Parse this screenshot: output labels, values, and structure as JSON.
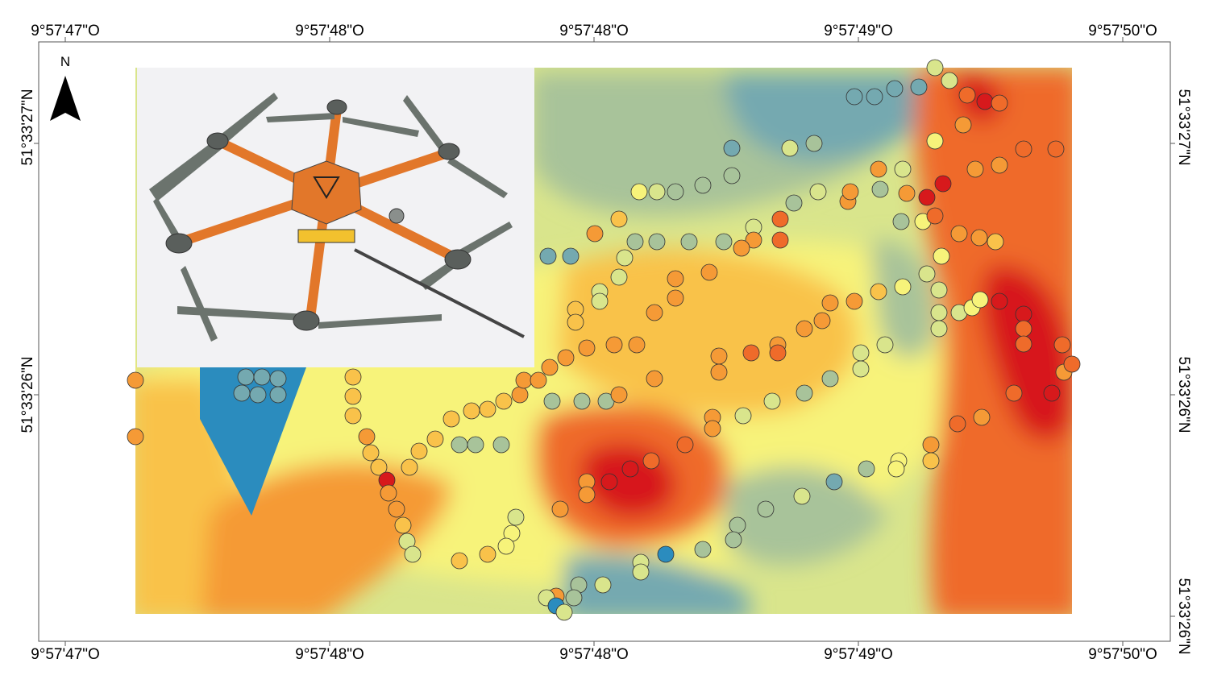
{
  "map": {
    "x_labels_top": [
      "9°57'47\"O",
      "9°57'48\"O",
      "9°57'48\"O",
      "9°57'49\"O",
      "9°57'50\"O"
    ],
    "x_labels_bottom": [
      "9°57'47\"O",
      "9°57'48\"O",
      "9°57'48\"O",
      "9°57'49\"O",
      "9°57'50\"O"
    ],
    "y_labels_left": [
      "51°33'27\"N",
      "51°33'26\"N"
    ],
    "y_labels_right": [
      "51°33'27\"N",
      "51°33'26\"N",
      "51°33'26\"N"
    ],
    "north_label": "N",
    "colors": {
      "blue": "#2b8cbe",
      "blue_grey": "#74a9b0",
      "grey_green": "#a8c39a",
      "yellow_green": "#d9e58c",
      "yellow": "#f7f37a",
      "light_orange": "#f9c24a",
      "orange": "#f59a36",
      "dark_orange": "#ef6b2a",
      "red": "#d7191c"
    },
    "icons": [
      "north-arrow-icon",
      "drone-photo-icon"
    ]
  }
}
